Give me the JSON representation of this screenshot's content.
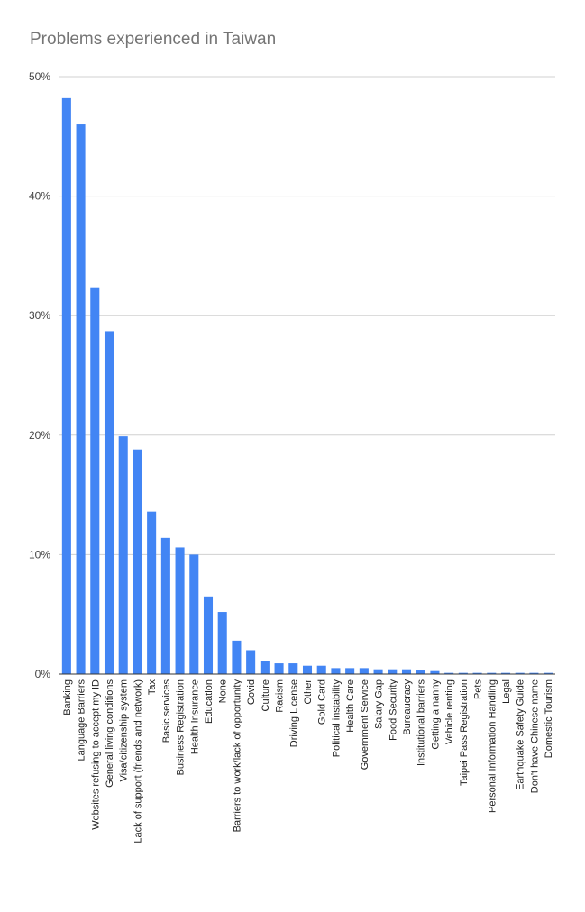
{
  "chart_data": {
    "type": "bar",
    "title": "Problems experienced in Taiwan",
    "xlabel": "",
    "ylabel": "",
    "ylim": [
      0,
      50
    ],
    "yticks": [
      "0%",
      "10%",
      "20%",
      "30%",
      "40%",
      "50%"
    ],
    "grid": true,
    "bar_color": "#4285f4",
    "categories": [
      "Banking",
      "Language Barriers",
      "Websites refusing to accept my ID",
      "General living conditions",
      "Visa/citizenship system",
      "Lack of support (friends and network)",
      "Tax",
      "Basic services",
      "Business Registration",
      "Health Insurance",
      "Education",
      "None",
      "Barriers to work/lack of opportunity",
      "Covid",
      "Culture",
      "Racism",
      "Driving License",
      "Other",
      "Gold Card",
      "Political instability",
      "Health Care",
      "Government Service",
      "Salary Gap",
      "Food Security",
      "Bureaucracy",
      "Institutional barriers",
      "Getting a nanny",
      "Vehicle renting",
      "Taipei Pass Registration",
      "Pets",
      "Personal Information Handling",
      "Legal",
      "Earthquake Safety Guide",
      "Don't have Chinese name",
      "Domestic Tourism"
    ],
    "values": [
      48.2,
      46.0,
      32.3,
      28.7,
      19.9,
      18.8,
      13.6,
      11.4,
      10.6,
      10.0,
      6.5,
      5.2,
      2.8,
      2.0,
      1.1,
      0.9,
      0.9,
      0.7,
      0.7,
      0.5,
      0.5,
      0.5,
      0.4,
      0.4,
      0.4,
      0.3,
      0.25,
      0.1,
      0.1,
      0.1,
      0.1,
      0.1,
      0.1,
      0.1,
      0.1
    ]
  }
}
